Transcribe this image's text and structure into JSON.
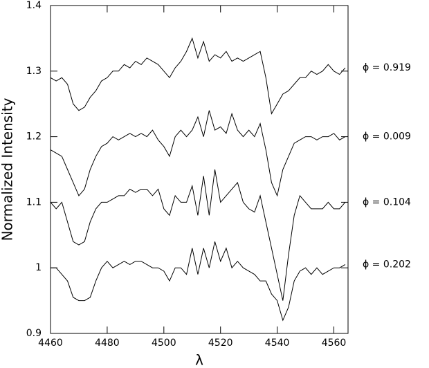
{
  "chart_data": {
    "type": "line",
    "xlabel": "λ",
    "ylabel": "Normalized Intensity",
    "xlim": [
      4460,
      4565
    ],
    "ylim": [
      0.9,
      1.4
    ],
    "xticks": [
      4460,
      4480,
      4500,
      4520,
      4540,
      4560
    ],
    "yticks": [
      0.9,
      1,
      1.1,
      1.2,
      1.3,
      1.4
    ],
    "x": [
      4460,
      4462,
      4464,
      4466,
      4468,
      4470,
      4472,
      4474,
      4476,
      4478,
      4480,
      4482,
      4484,
      4486,
      4488,
      4490,
      4492,
      4494,
      4496,
      4498,
      4500,
      4502,
      4504,
      4506,
      4508,
      4510,
      4512,
      4514,
      4516,
      4518,
      4520,
      4522,
      4524,
      4526,
      4528,
      4530,
      4532,
      4534,
      4536,
      4538,
      4540,
      4542,
      4544,
      4546,
      4548,
      4550,
      4552,
      4554,
      4556,
      4558,
      4560,
      4562,
      4564
    ],
    "series": [
      {
        "name": "ϕ  =  0.919",
        "color": "#000000",
        "values": [
          1.29,
          1.285,
          1.29,
          1.28,
          1.25,
          1.24,
          1.245,
          1.26,
          1.27,
          1.285,
          1.29,
          1.3,
          1.3,
          1.31,
          1.305,
          1.315,
          1.31,
          1.32,
          1.315,
          1.31,
          1.3,
          1.29,
          1.305,
          1.315,
          1.33,
          1.35,
          1.32,
          1.345,
          1.315,
          1.325,
          1.32,
          1.33,
          1.315,
          1.32,
          1.315,
          1.32,
          1.325,
          1.33,
          1.29,
          1.235,
          1.25,
          1.265,
          1.27,
          1.28,
          1.29,
          1.29,
          1.3,
          1.295,
          1.3,
          1.31,
          1.3,
          1.295,
          1.305
        ]
      },
      {
        "name": "ϕ  =  0.009",
        "color": "#000000",
        "values": [
          1.18,
          1.175,
          1.17,
          1.15,
          1.13,
          1.11,
          1.12,
          1.15,
          1.17,
          1.185,
          1.19,
          1.2,
          1.195,
          1.2,
          1.205,
          1.2,
          1.205,
          1.2,
          1.21,
          1.195,
          1.185,
          1.17,
          1.2,
          1.21,
          1.2,
          1.21,
          1.23,
          1.2,
          1.24,
          1.21,
          1.215,
          1.205,
          1.235,
          1.21,
          1.2,
          1.21,
          1.2,
          1.22,
          1.18,
          1.13,
          1.11,
          1.15,
          1.17,
          1.19,
          1.195,
          1.2,
          1.2,
          1.195,
          1.2,
          1.2,
          1.205,
          1.195,
          1.2
        ]
      },
      {
        "name": "ϕ  =  0.104",
        "color": "#000000",
        "values": [
          1.1,
          1.09,
          1.1,
          1.07,
          1.04,
          1.035,
          1.04,
          1.07,
          1.09,
          1.1,
          1.1,
          1.105,
          1.11,
          1.11,
          1.12,
          1.115,
          1.12,
          1.12,
          1.11,
          1.12,
          1.09,
          1.08,
          1.11,
          1.1,
          1.1,
          1.125,
          1.08,
          1.14,
          1.08,
          1.15,
          1.1,
          1.11,
          1.12,
          1.13,
          1.1,
          1.09,
          1.085,
          1.11,
          1.07,
          1.03,
          0.99,
          0.95,
          1.02,
          1.08,
          1.11,
          1.1,
          1.09,
          1.09,
          1.09,
          1.1,
          1.09,
          1.09,
          1.1
        ]
      },
      {
        "name": "ϕ  =  0.202",
        "color": "#000000",
        "values": [
          1.0,
          1.0,
          0.99,
          0.98,
          0.955,
          0.95,
          0.95,
          0.955,
          0.98,
          1.0,
          1.01,
          1.0,
          1.005,
          1.01,
          1.005,
          1.01,
          1.01,
          1.005,
          1.0,
          1.0,
          0.995,
          0.98,
          1.0,
          1.0,
          0.99,
          1.03,
          0.99,
          1.03,
          1.0,
          1.04,
          1.01,
          1.03,
          1.0,
          1.01,
          1.0,
          0.995,
          0.99,
          0.98,
          0.98,
          0.96,
          0.95,
          0.92,
          0.94,
          0.98,
          0.995,
          1.0,
          0.99,
          1.0,
          0.99,
          0.995,
          1.0,
          1.0,
          1.005
        ]
      }
    ]
  }
}
